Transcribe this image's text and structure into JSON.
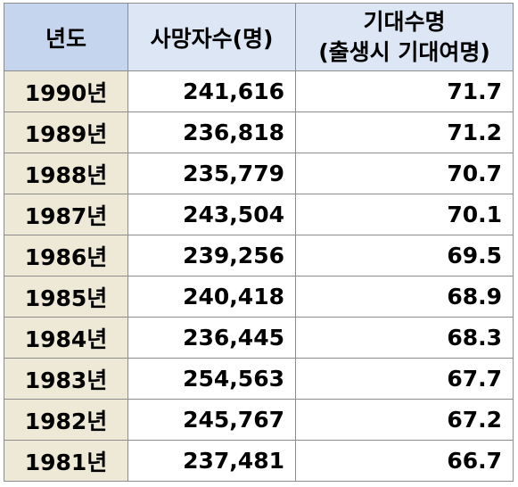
{
  "table": {
    "headers": {
      "year": "년도",
      "deaths": "사망자수(명)",
      "life_line1": "기대수명",
      "life_line2": "(출생시 기대여명)"
    },
    "rows": [
      {
        "year": "1990년",
        "deaths": "241,616",
        "life": "71.7"
      },
      {
        "year": "1989년",
        "deaths": "236,818",
        "life": "71.2"
      },
      {
        "year": "1988년",
        "deaths": "235,779",
        "life": "70.7"
      },
      {
        "year": "1987년",
        "deaths": "243,504",
        "life": "70.1"
      },
      {
        "year": "1986년",
        "deaths": "239,256",
        "life": "69.5"
      },
      {
        "year": "1985년",
        "deaths": "240,418",
        "life": "68.9"
      },
      {
        "year": "1984년",
        "deaths": "236,445",
        "life": "68.3"
      },
      {
        "year": "1983년",
        "deaths": "254,563",
        "life": "67.7"
      },
      {
        "year": "1982년",
        "deaths": "245,767",
        "life": "67.2"
      },
      {
        "year": "1981년",
        "deaths": "237,481",
        "life": "66.7"
      }
    ]
  },
  "colors": {
    "header_year_bg": "#c6d5ee",
    "header_bg": "#dde6f5",
    "year_cell_bg": "#eee9d7",
    "border": "#8c8c8c"
  }
}
